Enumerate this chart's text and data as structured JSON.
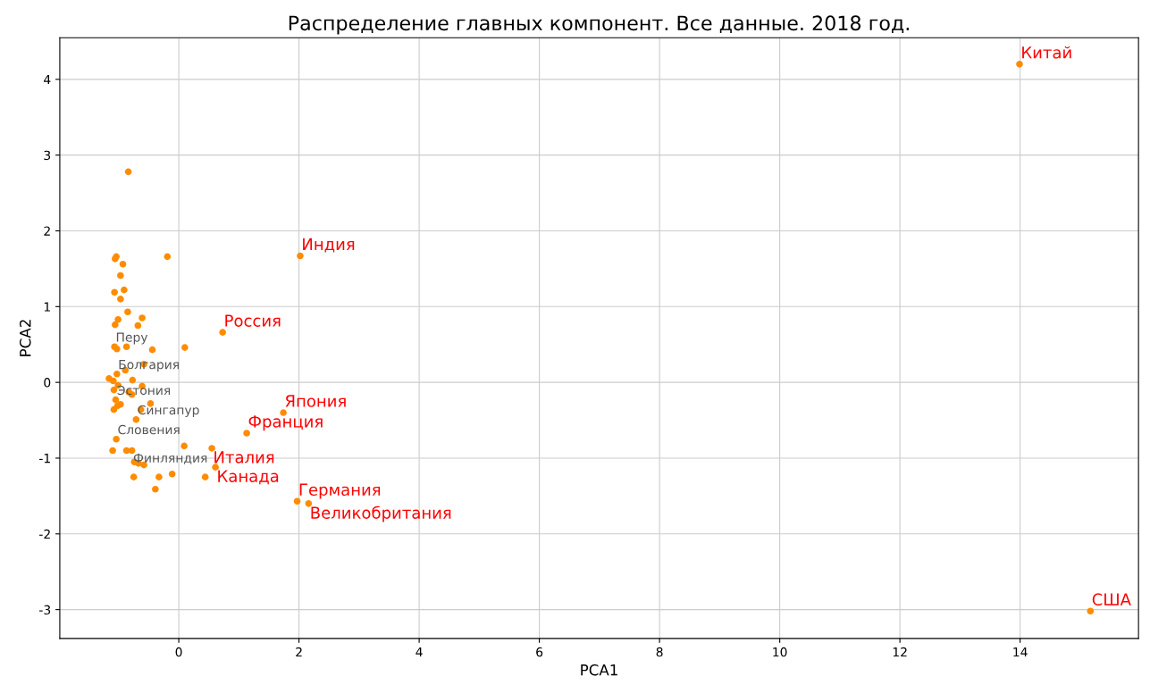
{
  "chart_data": {
    "type": "scatter",
    "title": "Распределение главных компонент. Все данные. 2018 год.",
    "xlabel": "PCA1",
    "ylabel": "PCA2",
    "xlim": [
      -1.98,
      15.97
    ],
    "ylim": [
      -3.38,
      4.55
    ],
    "xticks": [
      0,
      2,
      4,
      6,
      8,
      10,
      12,
      14
    ],
    "yticks": [
      -3,
      -2,
      -1,
      0,
      1,
      2,
      3,
      4
    ],
    "grid": true,
    "marker": "circle",
    "series": [
      {
        "color": "#ff8c00",
        "x": [
          -0.84,
          -1.04,
          -1.06,
          -0.93,
          -0.19,
          -0.97,
          -1.07,
          -0.91,
          -0.97,
          -0.85,
          -1.01,
          -0.61,
          -1.06,
          -0.68,
          -1.07,
          -1.03,
          -0.87,
          -0.44,
          0.1,
          -0.58,
          -1.03,
          -0.89,
          -1.16,
          -1.09,
          -0.77,
          -0.61,
          -1.01,
          -1.08,
          -0.83,
          -0.78,
          -1.05,
          -0.47,
          -0.97,
          -1.02,
          -1.08,
          -0.63,
          -0.71,
          -1.04,
          0.09,
          -1.1,
          -0.87,
          -0.78,
          -0.74,
          -0.67,
          -0.58,
          -0.75,
          -0.33,
          -0.11,
          0.44,
          -0.39
        ],
        "values": [
          2.78,
          1.66,
          1.63,
          1.56,
          1.66,
          1.41,
          1.19,
          1.22,
          1.1,
          0.93,
          0.83,
          0.85,
          0.76,
          0.75,
          0.47,
          0.44,
          0.47,
          0.43,
          0.46,
          0.24,
          0.11,
          0.16,
          0.05,
          0.02,
          0.03,
          -0.05,
          -0.04,
          -0.1,
          -0.13,
          -0.16,
          -0.23,
          -0.28,
          -0.29,
          -0.31,
          -0.36,
          -0.36,
          -0.49,
          -0.75,
          -0.84,
          -0.9,
          -0.9,
          -0.9,
          -1.05,
          -1.07,
          -1.09,
          -1.25,
          -1.25,
          -1.21,
          -1.25,
          -1.41
        ],
        "value_labels": [
          null,
          null,
          null,
          null,
          null,
          null,
          null,
          null,
          null,
          null,
          null,
          null,
          null,
          null,
          "Перу",
          null,
          null,
          null,
          null,
          null,
          "Болгария",
          null,
          null,
          null,
          null,
          null,
          null,
          null,
          null,
          null,
          "Эстония",
          null,
          null,
          null,
          null,
          null,
          "Сингапур",
          "Словения",
          null,
          null,
          null,
          "Финляндия",
          null,
          null,
          null,
          null,
          null,
          null,
          null,
          null
        ]
      },
      {
        "color": "#ff8c00",
        "x": [
          13.99,
          2.02,
          0.73,
          1.74,
          1.13,
          0.55,
          0.61,
          1.97,
          2.16,
          15.17
        ],
        "values": [
          4.2,
          1.67,
          0.66,
          -0.4,
          -0.67,
          -0.87,
          -1.12,
          -1.57,
          -1.6,
          -3.02
        ],
        "value_labels": [
          "Китай",
          "Индия",
          "Россия",
          "Япония",
          "Франция",
          "Италия",
          "Канада",
          "Германия",
          "Великобритания",
          "США"
        ]
      }
    ]
  }
}
